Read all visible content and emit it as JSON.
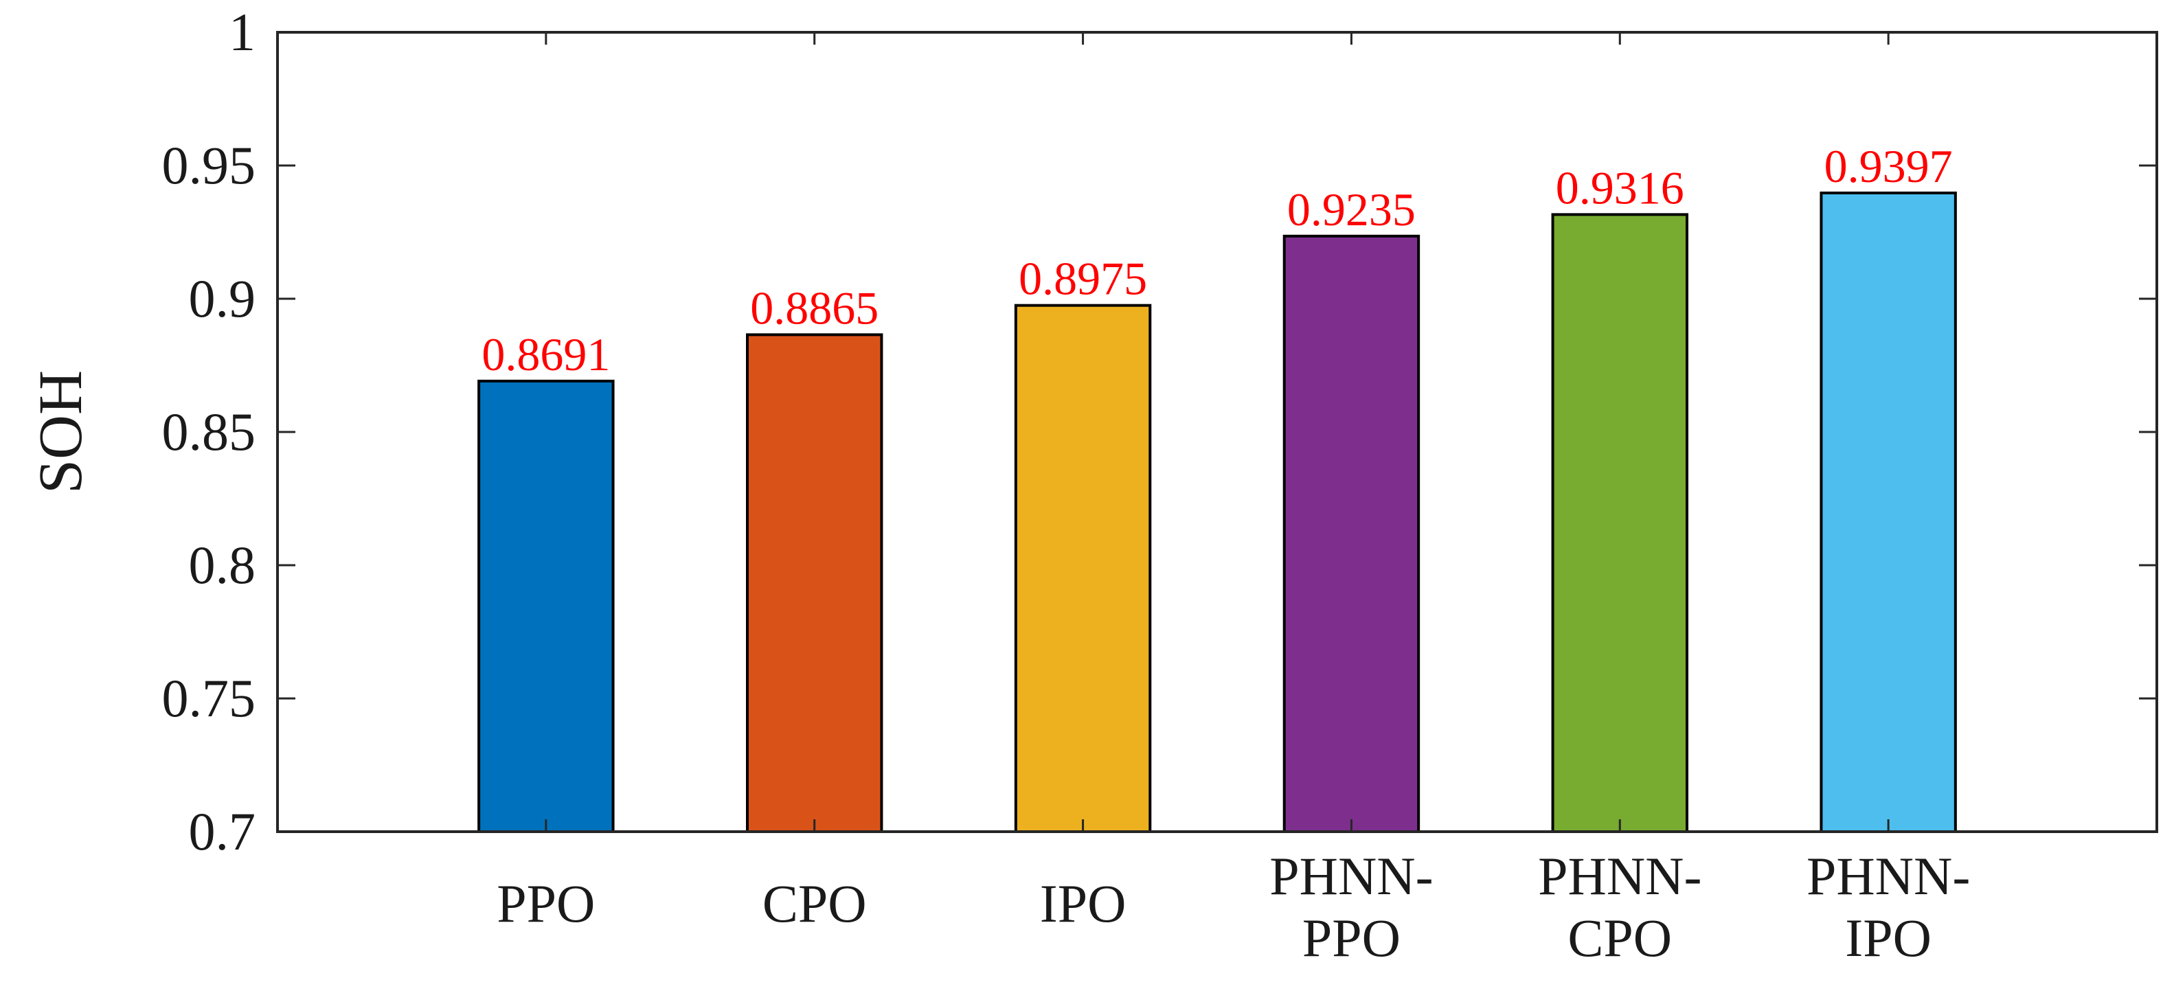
{
  "chart_data": {
    "type": "bar",
    "categories": [
      [
        "PPO"
      ],
      [
        "CPO"
      ],
      [
        "IPO"
      ],
      [
        "PHNN-",
        "PPO"
      ],
      [
        "PHNN-",
        "CPO"
      ],
      [
        "PHNN-",
        "IPO"
      ]
    ],
    "values": [
      0.8691,
      0.8865,
      0.8975,
      0.9235,
      0.9316,
      0.9397
    ],
    "data_labels": [
      "0.8691",
      "0.8865",
      "0.8975",
      "0.9235",
      "0.9316",
      "0.9397"
    ],
    "bar_colors": [
      "#0072BD",
      "#D95319",
      "#EDB120",
      "#7E2F8E",
      "#77AC30",
      "#4DBEEE"
    ],
    "data_label_color": "#FF0000",
    "title": "",
    "xlabel": "",
    "ylabel": "SOH",
    "ylim": [
      0.7,
      1
    ],
    "yticks": [
      0.7,
      0.75,
      0.8,
      0.85,
      0.9,
      0.95,
      1
    ],
    "ytick_labels": [
      "0.7",
      "0.75",
      "0.8",
      "0.85",
      "0.9",
      "0.95",
      "1"
    ],
    "grid": false,
    "legend": "none"
  }
}
